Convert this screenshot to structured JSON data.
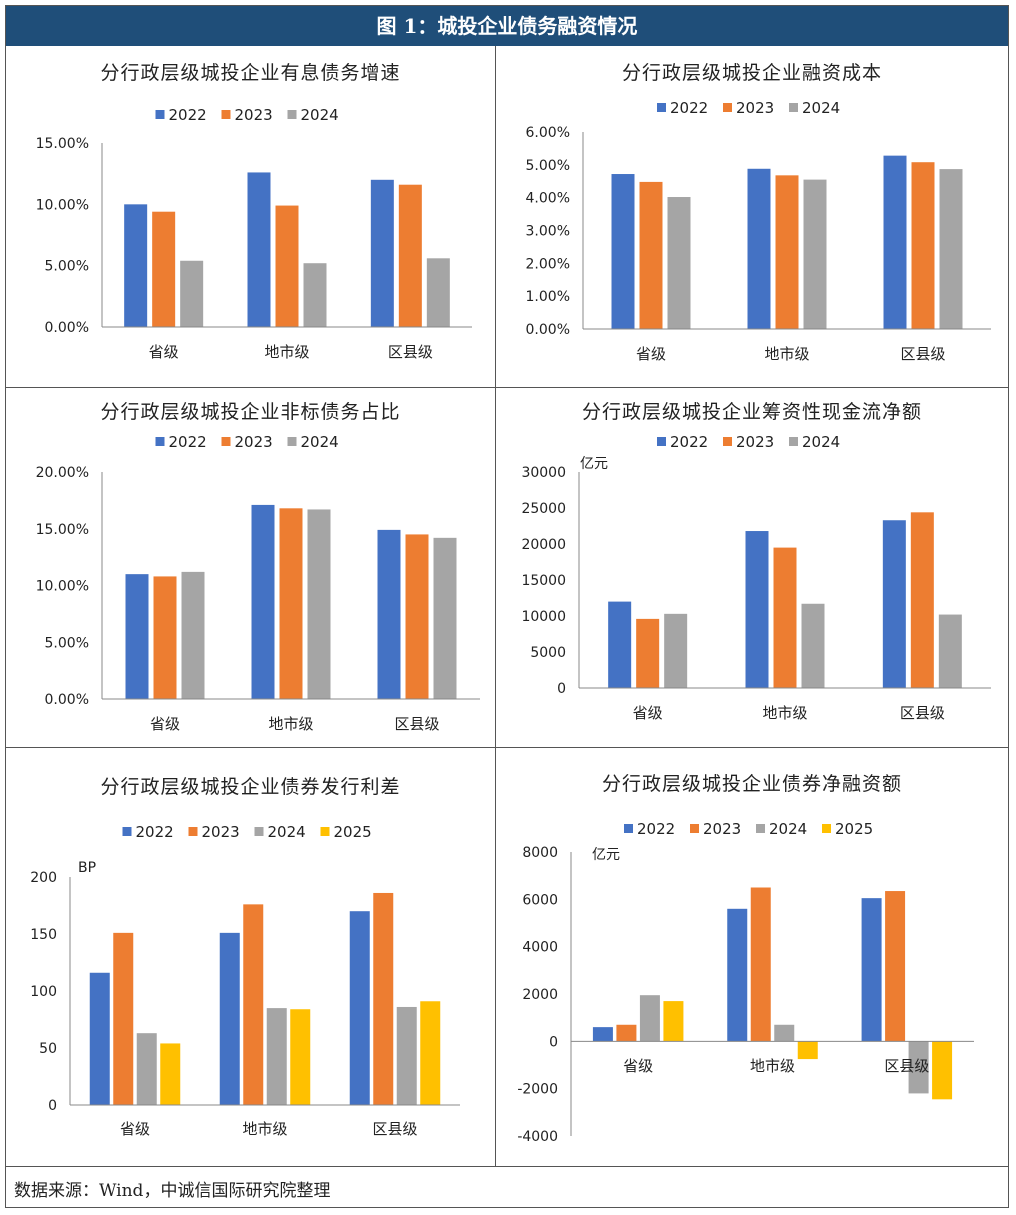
{
  "figure_title": "图 1：城投企业债务融资情况",
  "source_note": "数据来源：Wind，中诚信国际研究院整理",
  "colors": {
    "2022": "#4472c4",
    "2023": "#ed7d31",
    "2024": "#a5a5a5",
    "2025": "#ffc000"
  },
  "chart_data": [
    {
      "type": "bar",
      "title": "分行政层级城投企业有息债务增速",
      "categories": [
        "省级",
        "地市级",
        "区县级"
      ],
      "series": [
        {
          "name": "2022",
          "values": [
            10.0,
            12.6,
            12.0
          ]
        },
        {
          "name": "2023",
          "values": [
            9.4,
            9.9,
            11.6
          ]
        },
        {
          "name": "2024",
          "values": [
            5.4,
            5.2,
            5.6
          ]
        }
      ],
      "ylim": [
        0,
        15
      ],
      "yticks": [
        0,
        5,
        10,
        15
      ],
      "ytick_labels": [
        "0.00%",
        "5.00%",
        "10.00%",
        "15.00%"
      ],
      "unit": "",
      "legend": "top"
    },
    {
      "type": "bar",
      "title": "分行政层级城投企业融资成本",
      "categories": [
        "省级",
        "地市级",
        "区县级"
      ],
      "series": [
        {
          "name": "2022",
          "values": [
            4.72,
            4.88,
            5.28
          ]
        },
        {
          "name": "2023",
          "values": [
            4.48,
            4.68,
            5.08
          ]
        },
        {
          "name": "2024",
          "values": [
            4.02,
            4.55,
            4.87
          ]
        }
      ],
      "ylim": [
        0,
        6
      ],
      "yticks": [
        0,
        1,
        2,
        3,
        4,
        5,
        6
      ],
      "ytick_labels": [
        "0.00%",
        "1.00%",
        "2.00%",
        "3.00%",
        "4.00%",
        "5.00%",
        "6.00%"
      ],
      "unit": "",
      "legend": "top"
    },
    {
      "type": "bar",
      "title": "分行政层级城投企业非标债务占比",
      "categories": [
        "省级",
        "地市级",
        "区县级"
      ],
      "series": [
        {
          "name": "2022",
          "values": [
            11.0,
            17.1,
            14.9
          ]
        },
        {
          "name": "2023",
          "values": [
            10.8,
            16.8,
            14.5
          ]
        },
        {
          "name": "2024",
          "values": [
            11.2,
            16.7,
            14.2
          ]
        }
      ],
      "ylim": [
        0,
        20
      ],
      "yticks": [
        0,
        5,
        10,
        15,
        20
      ],
      "ytick_labels": [
        "0.00%",
        "5.00%",
        "10.00%",
        "15.00%",
        "20.00%"
      ],
      "unit": "",
      "legend": "top"
    },
    {
      "type": "bar",
      "title": "分行政层级城投企业筹资性现金流净额",
      "categories": [
        "省级",
        "地市级",
        "区县级"
      ],
      "series": [
        {
          "name": "2022",
          "values": [
            12000,
            21800,
            23300
          ]
        },
        {
          "name": "2023",
          "values": [
            9600,
            19500,
            24400
          ]
        },
        {
          "name": "2024",
          "values": [
            10300,
            11700,
            10200
          ]
        }
      ],
      "ylim": [
        0,
        30000
      ],
      "yticks": [
        0,
        5000,
        10000,
        15000,
        20000,
        25000,
        30000
      ],
      "ytick_labels": [
        "0",
        "5000",
        "10000",
        "15000",
        "20000",
        "25000",
        "30000"
      ],
      "unit": "亿元",
      "legend": "top"
    },
    {
      "type": "bar",
      "title": "分行政层级城投企业债券发行利差",
      "categories": [
        "省级",
        "地市级",
        "区县级"
      ],
      "series": [
        {
          "name": "2022",
          "values": [
            116,
            151,
            170
          ]
        },
        {
          "name": "2023",
          "values": [
            151,
            176,
            186
          ]
        },
        {
          "name": "2024",
          "values": [
            63,
            85,
            86
          ]
        },
        {
          "name": "2025",
          "values": [
            54,
            84,
            91
          ]
        }
      ],
      "ylim": [
        0,
        200
      ],
      "yticks": [
        0,
        50,
        100,
        150,
        200
      ],
      "ytick_labels": [
        "0",
        "50",
        "100",
        "150",
        "200"
      ],
      "unit": "BP",
      "legend": "top"
    },
    {
      "type": "bar",
      "title": "分行政层级城投企业债券净融资额",
      "categories": [
        "省级",
        "地市级",
        "区县级"
      ],
      "series": [
        {
          "name": "2022",
          "values": [
            600,
            5600,
            6050
          ]
        },
        {
          "name": "2023",
          "values": [
            700,
            6500,
            6350
          ]
        },
        {
          "name": "2024",
          "values": [
            1950,
            700,
            -2200
          ]
        },
        {
          "name": "2025",
          "values": [
            1700,
            -750,
            -2450
          ]
        }
      ],
      "ylim": [
        -4000,
        8000
      ],
      "yticks": [
        -4000,
        -2000,
        0,
        2000,
        4000,
        6000,
        8000
      ],
      "ytick_labels": [
        "-4000",
        "-2000",
        "0",
        "2000",
        "4000",
        "6000",
        "8000"
      ],
      "unit": "亿元",
      "legend": "top"
    }
  ]
}
